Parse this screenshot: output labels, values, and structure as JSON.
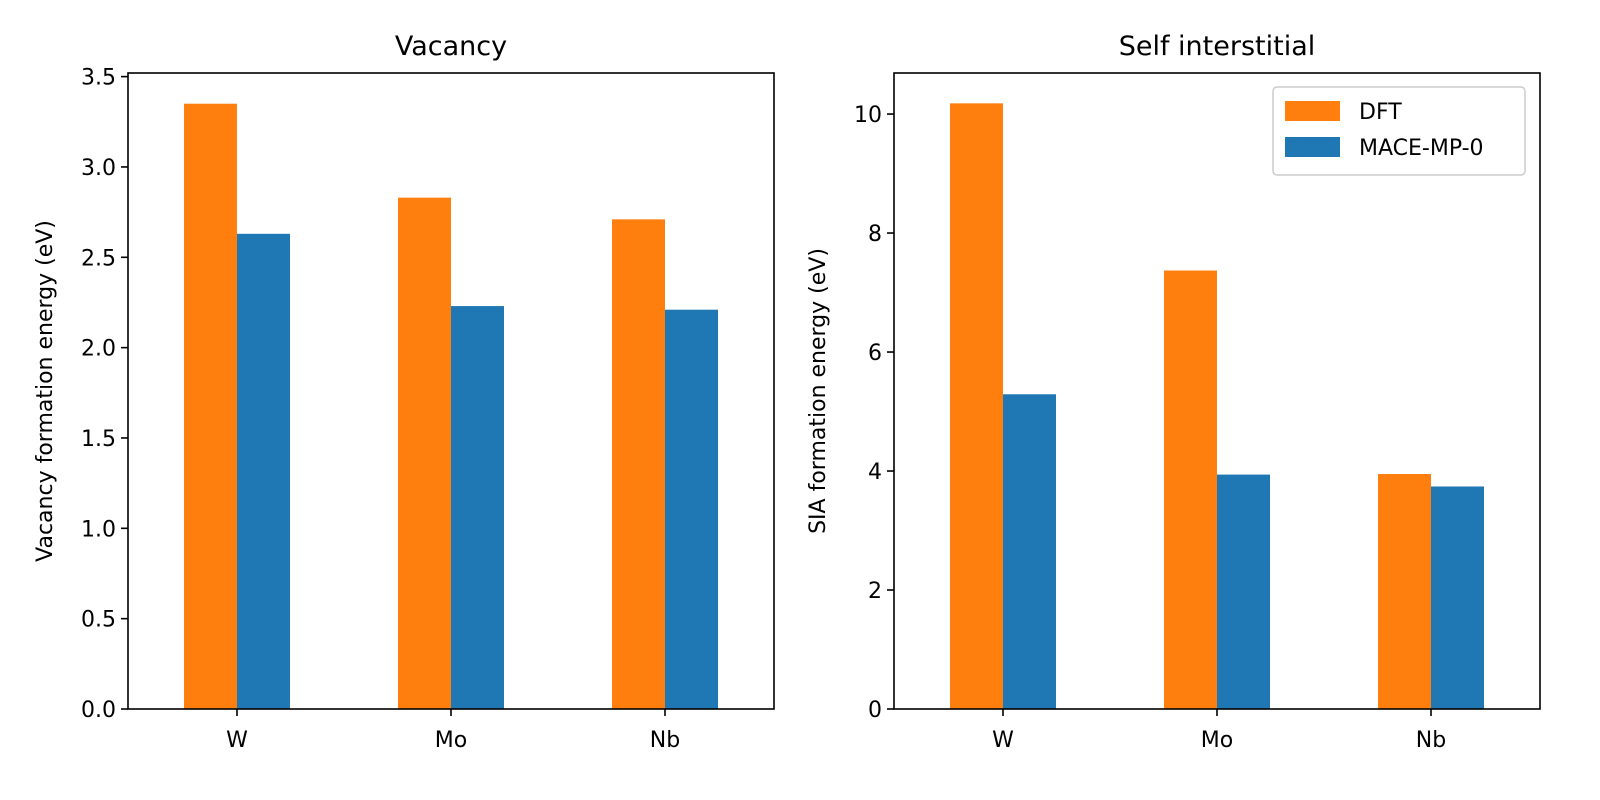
{
  "colors": {
    "dft": "#ff7f0e",
    "mace": "#1f77b4",
    "axis": "#000000",
    "legend_border": "#cccccc"
  },
  "chart_data": [
    {
      "type": "bar",
      "title": "Vacancy",
      "xlabel": "",
      "ylabel": "Vacancy formation energy (eV)",
      "categories": [
        "W",
        "Mo",
        "Nb"
      ],
      "series": [
        {
          "name": "DFT",
          "values": [
            3.35,
            2.83,
            2.71
          ]
        },
        {
          "name": "MACE-MP-0",
          "values": [
            2.63,
            2.23,
            2.21
          ]
        }
      ],
      "ylim": [
        0,
        3.52
      ],
      "yticks": [
        0.0,
        0.5,
        1.0,
        1.5,
        2.0,
        2.5,
        3.0,
        3.5
      ],
      "ytick_labels": [
        "0.0",
        "0.5",
        "1.0",
        "1.5",
        "2.0",
        "2.5",
        "3.0",
        "3.5"
      ],
      "grid": false,
      "legend": null
    },
    {
      "type": "bar",
      "title": "Self interstitial",
      "xlabel": "",
      "ylabel": "SIA formation energy (eV)",
      "categories": [
        "W",
        "Mo",
        "Nb"
      ],
      "series": [
        {
          "name": "DFT",
          "values": [
            10.18,
            7.37,
            3.95
          ]
        },
        {
          "name": "MACE-MP-0",
          "values": [
            5.29,
            3.94,
            3.74
          ]
        }
      ],
      "ylim": [
        0,
        10.69
      ],
      "yticks": [
        0,
        2,
        4,
        6,
        8,
        10
      ],
      "ytick_labels": [
        "0",
        "2",
        "4",
        "6",
        "8",
        "10"
      ],
      "grid": false,
      "legend": "top-right"
    }
  ]
}
